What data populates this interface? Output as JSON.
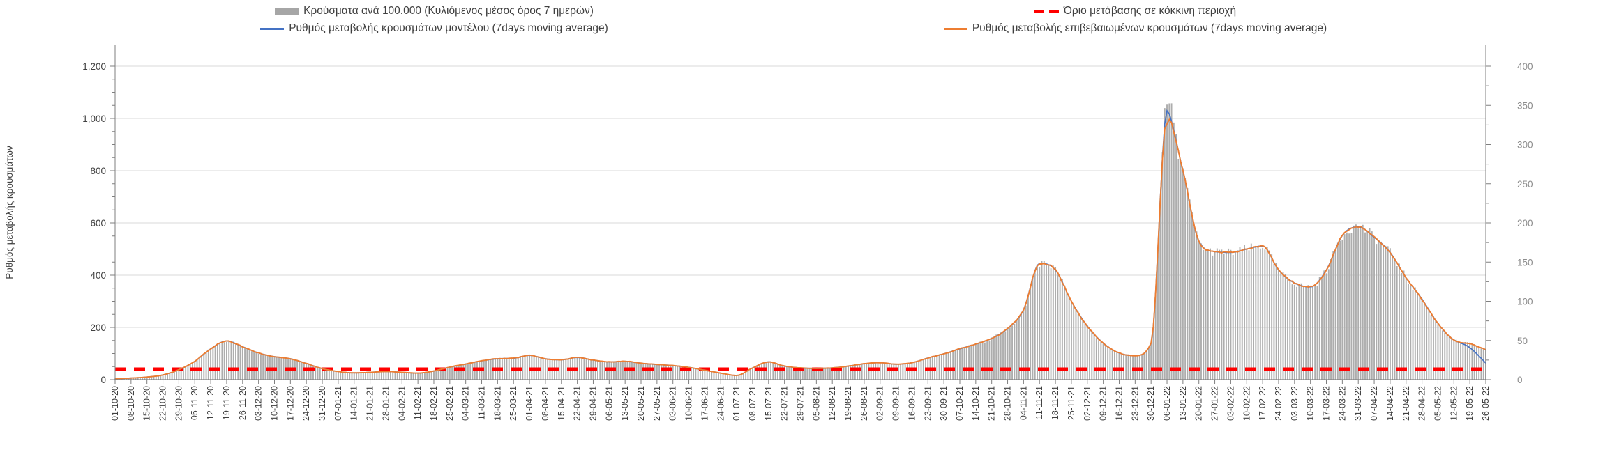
{
  "legend": {
    "items": [
      {
        "id": "cases-bars",
        "label": "Κρούσματα ανά 100.000 (Κυλιόμενος μέσος όρος 7 ημερών)",
        "swatch": "gray-bar",
        "color": "#A6A6A6"
      },
      {
        "id": "model-line",
        "label": "Ρυθμός μεταβολής κρουσμάτων μοντέλου (7days moving average)",
        "swatch": "blue-line",
        "color": "#4472C4"
      },
      {
        "id": "red-threshold",
        "label": "Όριο μετάβασης σε κόκκινη περιοχή",
        "swatch": "red-dashes",
        "color": "#FF0000"
      },
      {
        "id": "confirmed-line",
        "label": "Ρυθμός μεταβολής επιβεβαιωμένων κρουσμάτων (7days moving average)",
        "swatch": "orange-line",
        "color": "#ED7D31"
      }
    ]
  },
  "chart_data": {
    "type": "bar+line",
    "title": "",
    "legend_position": "top",
    "grid": "horizontal",
    "left_axis": {
      "label": "Ρυθμός μεταβολής κρουσμάτων",
      "min": 0,
      "max": 1200,
      "major_step": 200,
      "minor_step": 50,
      "tick_labels": [
        "0",
        "200",
        "400",
        "600",
        "800",
        "1,000",
        "1,200"
      ]
    },
    "right_axis": {
      "min": 0,
      "max": 400,
      "major_step": 50,
      "tick_labels": [
        "0",
        "50",
        "100",
        "150",
        "200",
        "250",
        "300",
        "350",
        "400"
      ]
    },
    "x_axis": {
      "interval": "weekly",
      "first": "01-10-20",
      "last": "26-05-22"
    },
    "x_tick_labels": [
      "01-10-20",
      "08-10-20",
      "15-10-20",
      "22-10-20",
      "29-10-20",
      "05-11-20",
      "12-11-20",
      "19-11-20",
      "26-11-20",
      "03-12-20",
      "10-12-20",
      "17-12-20",
      "24-12-20",
      "31-12-20",
      "07-01-21",
      "14-01-21",
      "21-01-21",
      "28-01-21",
      "04-02-21",
      "11-02-21",
      "18-02-21",
      "25-02-21",
      "04-03-21",
      "11-03-21",
      "18-03-21",
      "25-03-21",
      "01-04-21",
      "08-04-21",
      "15-04-21",
      "22-04-21",
      "29-04-21",
      "06-05-21",
      "13-05-21",
      "20-05-21",
      "27-05-21",
      "03-06-21",
      "10-06-21",
      "17-06-21",
      "24-06-21",
      "01-07-21",
      "08-07-21",
      "15-07-21",
      "22-07-21",
      "29-07-21",
      "05-08-21",
      "12-08-21",
      "19-08-21",
      "26-08-21",
      "02-09-21",
      "09-09-21",
      "16-09-21",
      "23-09-21",
      "30-09-21",
      "07-10-21",
      "14-10-21",
      "21-10-21",
      "28-10-21",
      "04-11-21",
      "11-11-21",
      "18-11-21",
      "25-11-21",
      "02-12-21",
      "09-12-21",
      "16-12-21",
      "23-12-21",
      "30-12-21",
      "06-01-22",
      "13-01-22",
      "20-01-22",
      "27-01-22",
      "03-02-22",
      "10-02-22",
      "17-02-22",
      "24-02-22",
      "03-03-22",
      "10-03-22",
      "17-03-22",
      "24-03-22",
      "31-03-22",
      "07-04-22",
      "14-04-22",
      "21-04-22",
      "28-04-22",
      "05-05-22",
      "12-05-22",
      "19-05-22",
      "26-05-22"
    ],
    "series": [
      {
        "name": "Κρούσματα ανά 100.000 (Κυλιόμενος μέσος όρος 7 ημερών)",
        "type": "bar",
        "axis": "right",
        "color": "#ADADAD",
        "note": "daily bars; right-axis value = left-axis rate / 3"
      },
      {
        "name": "Ρυθμός μεταβολής κρουσμάτων μοντέλου (7days moving average)",
        "type": "line",
        "axis": "left",
        "color": "#4472C4"
      },
      {
        "name": "Ρυθμός μεταβολής επιβεβαιωμένων κρουσμάτων (7days moving average)",
        "type": "line",
        "axis": "left",
        "color": "#ED7D31"
      }
    ],
    "weekly_rate_left_axis": [
      4,
      6,
      10,
      18,
      38,
      70,
      118,
      148,
      126,
      102,
      88,
      80,
      62,
      42,
      31,
      26,
      28,
      31,
      28,
      25,
      33,
      48,
      60,
      72,
      80,
      82,
      93,
      80,
      76,
      85,
      75,
      68,
      70,
      63,
      58,
      54,
      47,
      36,
      25,
      16,
      45,
      68,
      52,
      45,
      43,
      45,
      52,
      61,
      65,
      59,
      65,
      83,
      99,
      118,
      136,
      158,
      196,
      268,
      445,
      420,
      300,
      205,
      140,
      102,
      92,
      140,
      1005,
      800,
      530,
      490,
      487,
      500,
      512,
      420,
      370,
      355,
      420,
      552,
      585,
      545,
      487,
      390,
      308,
      215,
      152,
      138,
      115
    ],
    "threshold_line": {
      "name": "Όριο μετάβασης σε κόκκινη περιοχή",
      "value_left_axis": 40,
      "color": "#FF0000",
      "style": "dashed"
    }
  },
  "colors": {
    "bars": "#ADADAD",
    "model_line": "#4472C4",
    "confirmed_line": "#ED7D31",
    "threshold": "#FF0000",
    "grid": "#D9D9D9",
    "axis": "#7F7F7F",
    "left_tick_text": "#404040",
    "right_tick_text": "#8C8C8C",
    "x_tick_text": "#404040"
  }
}
